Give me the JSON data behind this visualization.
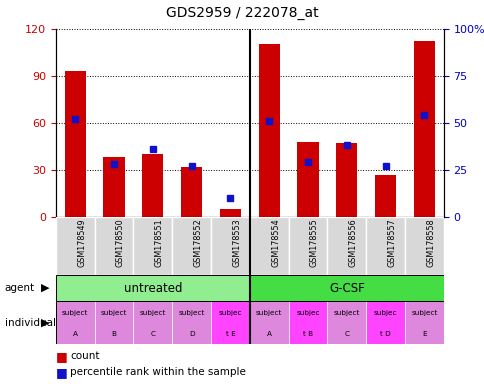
{
  "title": "GDS2959 / 222078_at",
  "samples": [
    "GSM178549",
    "GSM178550",
    "GSM178551",
    "GSM178552",
    "GSM178553",
    "GSM178554",
    "GSM178555",
    "GSM178556",
    "GSM178557",
    "GSM178558"
  ],
  "counts": [
    93,
    38,
    40,
    32,
    5,
    110,
    48,
    47,
    27,
    112
  ],
  "percentile_ranks": [
    52,
    28,
    36,
    27,
    10,
    51,
    29,
    38,
    27,
    54
  ],
  "ylim_left": [
    0,
    120
  ],
  "ylim_right": [
    0,
    100
  ],
  "yticks_left": [
    0,
    30,
    60,
    90,
    120
  ],
  "yticks_right": [
    0,
    25,
    50,
    75,
    100
  ],
  "ytick_labels_right": [
    "0",
    "25",
    "50",
    "75",
    "100%"
  ],
  "bar_color": "#cc0000",
  "dot_color": "#1111cc",
  "agent_groups": [
    {
      "label": "untreated",
      "start": 0,
      "end": 5,
      "color": "#90ee90"
    },
    {
      "label": "G-CSF",
      "start": 5,
      "end": 10,
      "color": "#44dd44"
    }
  ],
  "individuals": [
    {
      "label": "subject\nA",
      "color": "#dd88dd"
    },
    {
      "label": "subject\nB",
      "color": "#dd88dd"
    },
    {
      "label": "subject\nC",
      "color": "#dd88dd"
    },
    {
      "label": "subject\nD",
      "color": "#dd88dd"
    },
    {
      "label": "subjec\nt E",
      "color": "#ff44ff"
    },
    {
      "label": "subject\nA",
      "color": "#dd88dd"
    },
    {
      "label": "subjec\nt B",
      "color": "#ff44ff"
    },
    {
      "label": "subject\nC",
      "color": "#dd88dd"
    },
    {
      "label": "subjec\nt D",
      "color": "#ff44ff"
    },
    {
      "label": "subject\nE",
      "color": "#dd88dd"
    }
  ],
  "tick_label_color_left": "#cc0000",
  "tick_label_color_right": "#0000cc",
  "sample_cell_color": "#d8d8d8",
  "legend_count_label": "count",
  "legend_pct_label": "percentile rank within the sample"
}
